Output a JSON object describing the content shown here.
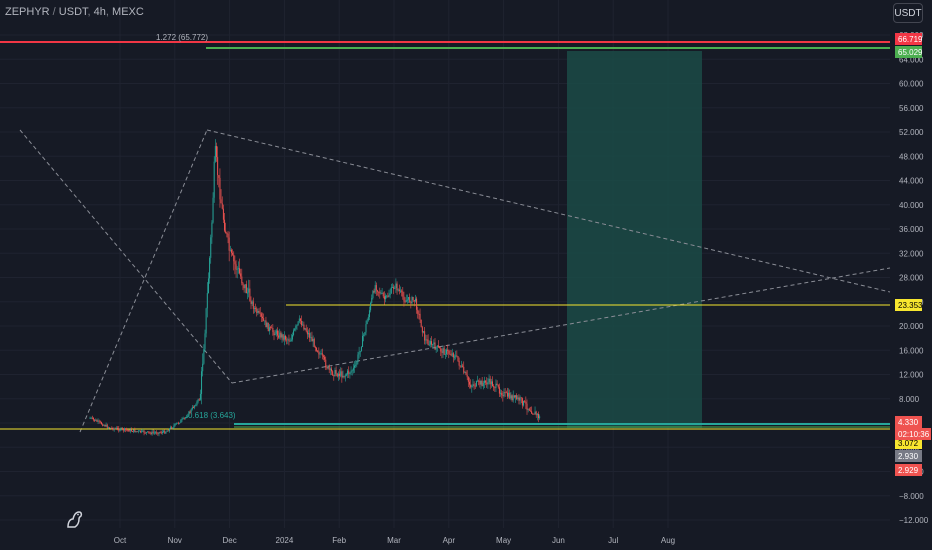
{
  "header": {
    "symbol": "ZEPHYR",
    "quote": "USDT",
    "interval": "4h",
    "exchange": "MEXC",
    "sep1": " / ",
    "sep2": ", "
  },
  "currency_button": {
    "label": "USDT"
  },
  "price_axis": {
    "ticks": [
      "68.000",
      "64.000",
      "60.000",
      "56.000",
      "52.000",
      "48.000",
      "44.000",
      "40.000",
      "36.000",
      "32.000",
      "28.000",
      "24.000",
      "20.000",
      "16.000",
      "12.000",
      "8.000",
      "4.000",
      "0.000",
      "−4.000",
      "−8.000",
      "−12.000"
    ]
  },
  "time_axis": {
    "ticks": [
      "Oct",
      "Nov",
      "Dec",
      "2024",
      "Feb",
      "Mar",
      "Apr",
      "May",
      "Jun",
      "Jul",
      "Aug"
    ]
  },
  "annotations": {
    "fib_top": "1.272 (65.772)",
    "fib_bottom": "0.618 (3.643)"
  },
  "price_labels": {
    "pink": {
      "value": "66.719",
      "color": "#f23645"
    },
    "green_top": {
      "value": "65.029",
      "color": "#4caf50"
    },
    "yellow_mid": {
      "value": "23.353",
      "color": "#f7e62f"
    },
    "current": {
      "value": "4.330",
      "countdown": "02:10:36",
      "color": "#ef5350"
    },
    "yellow_low": {
      "value": "3.072",
      "color": "#f7e62f"
    },
    "grey": {
      "value": "2.930",
      "color": "#787b86"
    },
    "red_low": {
      "value": "2.929",
      "color": "#ef5350"
    }
  },
  "colors": {
    "background": "#161a25",
    "up": "#26a69a",
    "down": "#ef5350",
    "target_zone": "#1b4b47",
    "grid": "#1f2330"
  }
}
